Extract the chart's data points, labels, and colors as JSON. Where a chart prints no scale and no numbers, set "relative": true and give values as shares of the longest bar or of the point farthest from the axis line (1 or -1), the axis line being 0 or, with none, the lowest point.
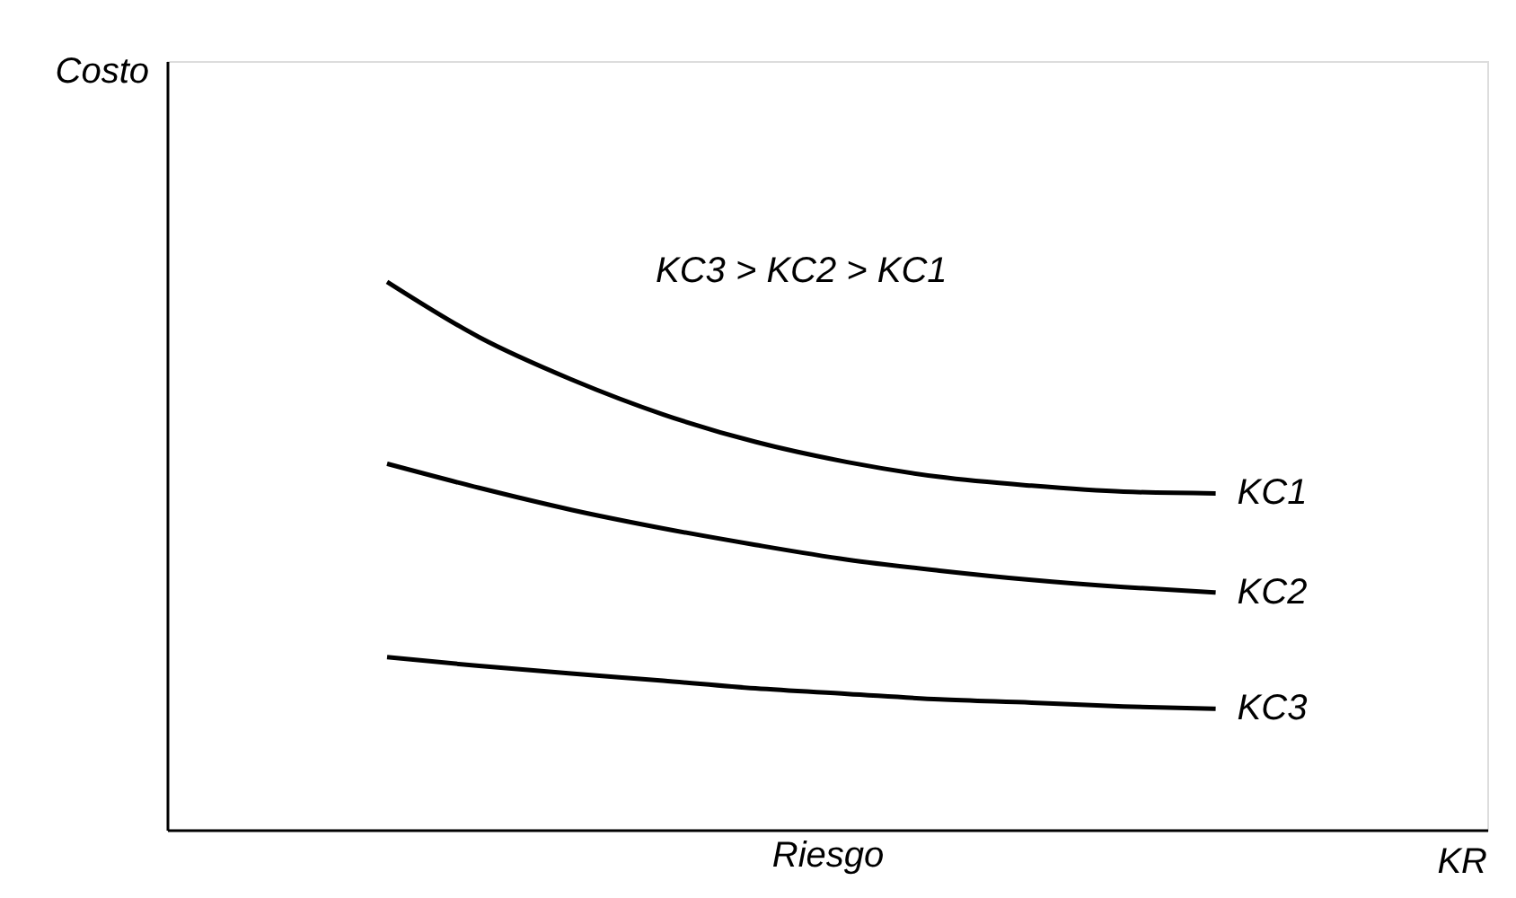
{
  "chart_data": {
    "type": "line",
    "relative": true,
    "xlabel": "Riesgo",
    "annotations": [
      "KC3 > KC2 > KC1",
      "KR",
      "Costo"
    ],
    "categories": [
      null,
      null,
      null,
      null,
      null,
      null,
      null,
      null,
      null,
      null
    ],
    "tick_labels": false,
    "line_style": "solid",
    "series": [
      {
        "name": "KC1",
        "color": "#000000",
        "values": [
          1,
          0.899,
          0.822,
          0.758,
          0.708,
          0.671,
          0.644,
          0.628,
          0.617,
          0.614
        ]
      },
      {
        "name": "KC2",
        "color": "#000000",
        "values": [
          0.668,
          0.624,
          0.584,
          0.55,
          0.52,
          0.493,
          0.473,
          0.456,
          0.443,
          0.433
        ]
      },
      {
        "name": "KC3",
        "color": "#000000",
        "values": [
          0.315,
          0.299,
          0.285,
          0.272,
          0.258,
          0.248,
          0.238,
          0.232,
          0.225,
          0.221
        ]
      }
    ]
  }
}
